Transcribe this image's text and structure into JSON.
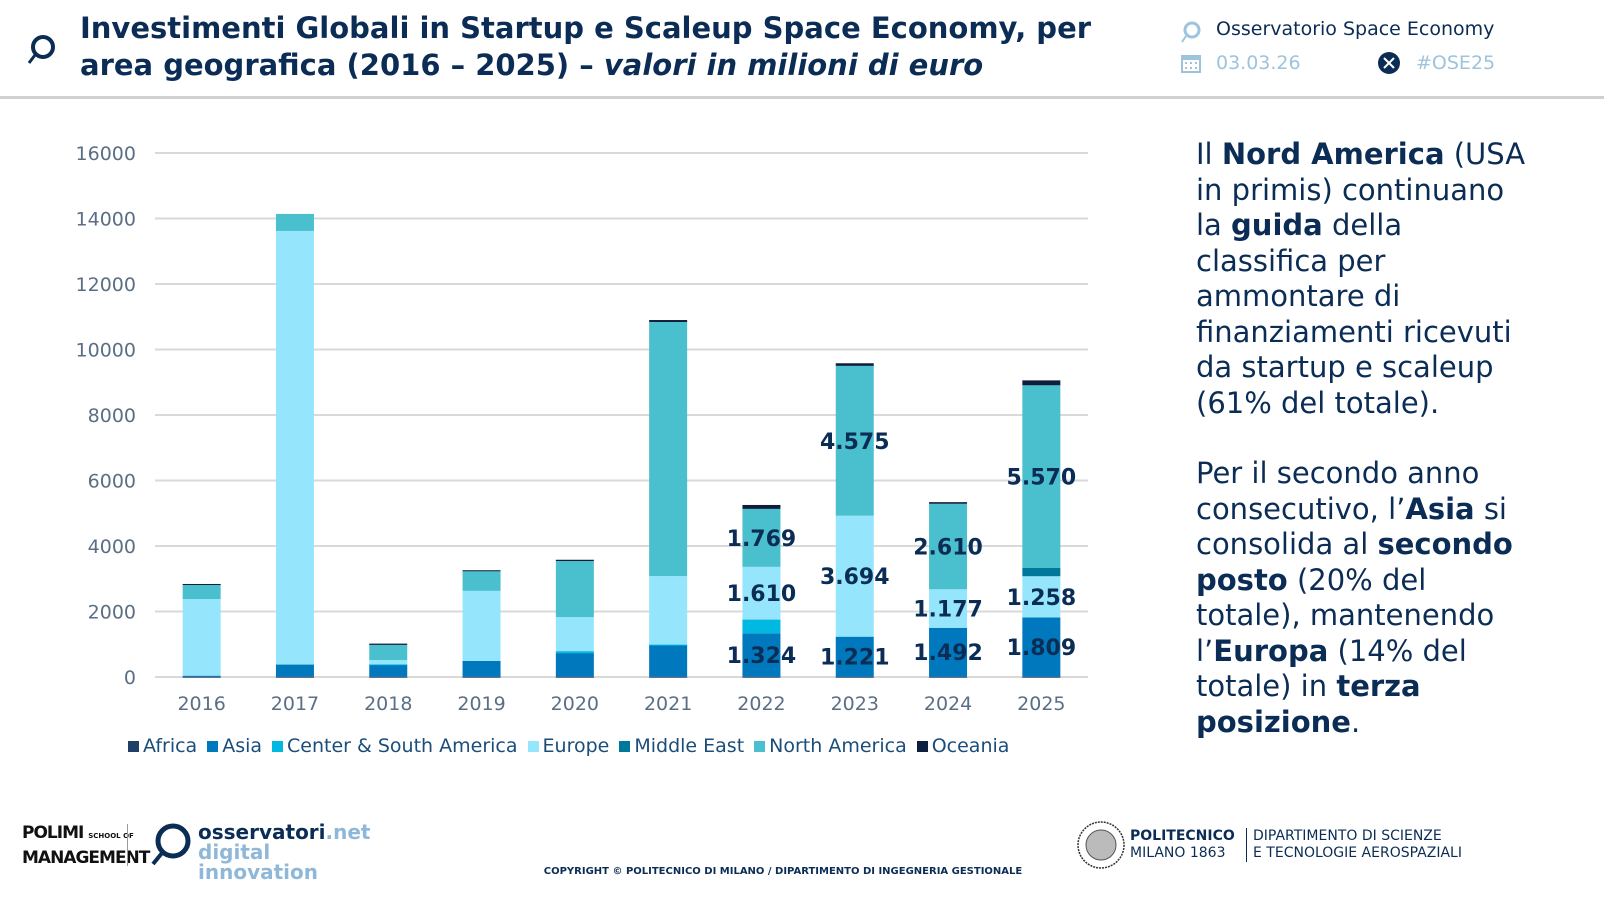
{
  "header": {
    "title_main": "Investimenti Globali in Startup e Scaleup Space Economy, per area geografica (2016 – 2025) – ",
    "title_italic": "valori in milioni di euro",
    "org": "Osservatorio Space Economy",
    "date": "03.03.26",
    "hashtag": "#OSE25",
    "icons": [
      "magnifier-logo-icon",
      "calendar-icon",
      "x-logo-icon"
    ]
  },
  "chart_data": {
    "type": "bar",
    "stacked": true,
    "categories": [
      "2016",
      "2017",
      "2018",
      "2019",
      "2020",
      "2021",
      "2022",
      "2023",
      "2024",
      "2025"
    ],
    "ylim": [
      0,
      16000
    ],
    "yticks": [
      "0",
      "2000",
      "4000",
      "6000",
      "8000",
      "10000",
      "12000",
      "14000",
      "16000"
    ],
    "grid": true,
    "legend_position": "bottom",
    "series": [
      {
        "name": "Africa",
        "color": "#1f3f66",
        "values": [
          10,
          10,
          10,
          10,
          10,
          10,
          10,
          10,
          10,
          10
        ],
        "labels": [
          null,
          null,
          null,
          null,
          null,
          null,
          null,
          null,
          null,
          null
        ]
      },
      {
        "name": "Asia",
        "color": "#0078be",
        "values": [
          30,
          370,
          360,
          480,
          720,
          970,
          1324,
          1221,
          1492,
          1809
        ],
        "labels": [
          null,
          null,
          null,
          null,
          null,
          null,
          "1.324",
          "1.221",
          "1.492",
          "1.809"
        ]
      },
      {
        "name": "Center & South America",
        "color": "#00b9e3",
        "values": [
          0,
          0,
          20,
          0,
          60,
          10,
          420,
          0,
          0,
          0
        ],
        "labels": [
          null,
          null,
          null,
          null,
          null,
          null,
          null,
          null,
          null,
          null
        ]
      },
      {
        "name": "Europe",
        "color": "#95e6fd",
        "values": [
          2340,
          13240,
          130,
          2140,
          1040,
          2090,
          1610,
          3694,
          1177,
          1258
        ],
        "labels": [
          null,
          null,
          null,
          null,
          null,
          null,
          "1.610",
          "3.694",
          "1.177",
          "1.258"
        ]
      },
      {
        "name": "Middle East",
        "color": "#00789b",
        "values": [
          0,
          0,
          0,
          0,
          0,
          0,
          0,
          0,
          0,
          260
        ],
        "labels": [
          null,
          null,
          null,
          null,
          null,
          null,
          null,
          null,
          null,
          null
        ]
      },
      {
        "name": "North America",
        "color": "#4abfcd",
        "values": [
          430,
          520,
          460,
          610,
          1710,
          7760,
          1769,
          4575,
          2610,
          5570
        ],
        "labels": [
          null,
          null,
          null,
          null,
          null,
          null,
          "1.769",
          "4.575",
          "2.610",
          "5.570"
        ]
      },
      {
        "name": "Oceania",
        "color": "#0d1f3c",
        "values": [
          30,
          0,
          40,
          20,
          40,
          60,
          120,
          80,
          50,
          150
        ],
        "labels": [
          null,
          null,
          null,
          null,
          null,
          null,
          null,
          null,
          null,
          null
        ]
      }
    ]
  },
  "side": {
    "p1": [
      {
        "t": "Il ",
        "b": false
      },
      {
        "t": "Nord America",
        "b": true
      },
      {
        "t": " (USA in primis) continuano la ",
        "b": false
      },
      {
        "t": "guida",
        "b": true
      },
      {
        "t": " della classifica per ammontare di finanziamenti ricevuti da startup e scaleup (61% del totale).",
        "b": false
      }
    ],
    "p2": [
      {
        "t": "Per il secondo anno consecutivo, l’",
        "b": false
      },
      {
        "t": "Asia",
        "b": true
      },
      {
        "t": " si consolida al ",
        "b": false
      },
      {
        "t": "secondo posto",
        "b": true
      },
      {
        "t": " (20% del totale), mantenendo l’",
        "b": false
      },
      {
        "t": "Europa",
        "b": true
      },
      {
        "t": " (14% del totale) in ",
        "b": false
      },
      {
        "t": "terza posizione",
        "b": true
      },
      {
        "t": ".",
        "b": false
      }
    ]
  },
  "footer": {
    "polimi_1": "POLIMI",
    "polimi_small": "SCHOOL OF",
    "polimi_2": "MANAGEMENT",
    "osserv_1a": "osservatori",
    "osserv_1b": ".net",
    "osserv_2": "digital innovation",
    "poli_1": "POLITECNICO",
    "poli_2": "MILANO 1863",
    "dept_1": "DIPARTIMENTO DI SCIENZE",
    "dept_2": "E TECNOLOGIE AEROSPAZIALI",
    "copyright": "COPYRIGHT © POLITECNICO DI MILANO / DIPARTIMENTO DI INGEGNERIA GESTIONALE"
  }
}
